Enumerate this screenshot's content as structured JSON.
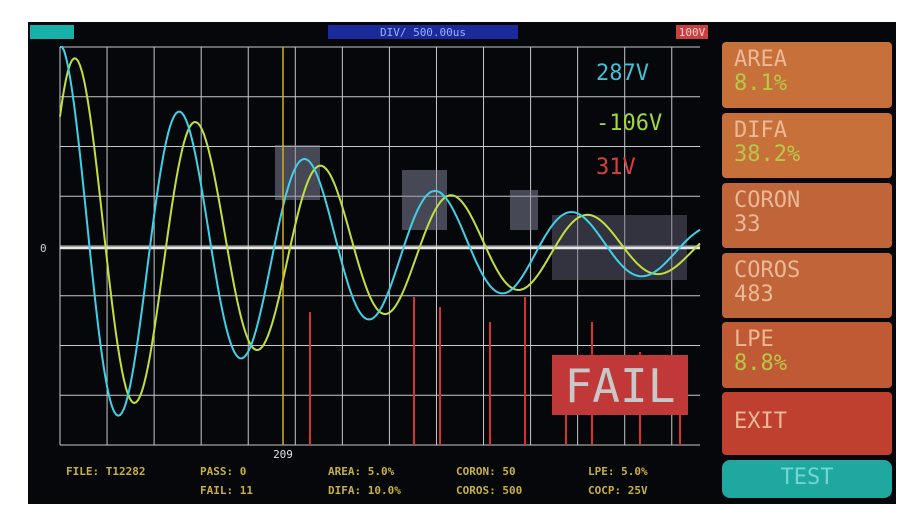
{
  "header": {
    "timebase": "DIV/ 500.00us",
    "range": "100V"
  },
  "plot": {
    "readings": [
      "287V",
      "-106V",
      "31V"
    ],
    "zero_label": "0",
    "cursor_label": "209",
    "verdict": "FAIL"
  },
  "buttons": [
    {
      "label": "AREA",
      "value": "8.1%"
    },
    {
      "label": "DIFA",
      "value": "38.2%"
    },
    {
      "label": "CORON",
      "value": "33"
    },
    {
      "label": "COROS",
      "value": "483"
    },
    {
      "label": "LPE",
      "value": "8.8%"
    },
    {
      "label": "EXIT"
    },
    {
      "label": "TEST"
    }
  ],
  "footer": {
    "file": "FILE: T12282",
    "pass": "PASS: 0",
    "fail": "FAIL: 11",
    "area": "AREA: 5.0%",
    "difa": "DIFA: 10.0%",
    "coron": "CORON: 50",
    "coros": "COROS: 500",
    "lpe": "LPE: 5.0%",
    "cocp": "COCP: 25V"
  }
}
